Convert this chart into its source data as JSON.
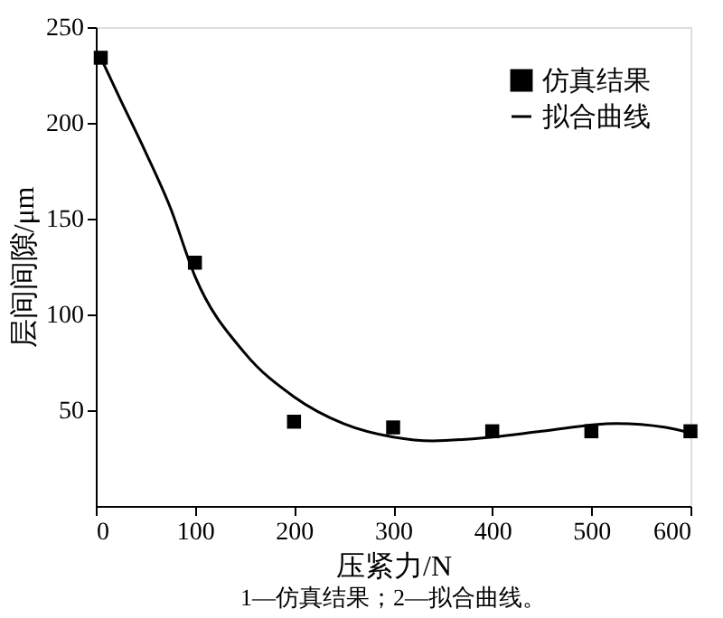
{
  "chart_data": {
    "type": "scatter",
    "xlabel": "压紧力/N",
    "ylabel": "层间间隙/μm",
    "xlim": [
      0,
      600
    ],
    "xticks": [
      0,
      100,
      200,
      300,
      400,
      500,
      600
    ],
    "ylim": [
      0,
      250
    ],
    "yticks": [
      50,
      100,
      150,
      200,
      250
    ],
    "series": [
      {
        "name": "仿真结果",
        "color": "#000000",
        "marker": "square",
        "x": [
          5,
          100,
          200,
          300,
          400,
          500,
          600
        ],
        "values": [
          234,
          127,
          44,
          41,
          39,
          39,
          39
        ]
      },
      {
        "name": "拟合曲线",
        "type": "line",
        "color": "#000000",
        "line_style": "solid",
        "x": [
          5,
          25,
          50,
          75,
          100,
          150,
          200,
          250,
          300,
          340,
          400,
          450,
          525,
          575,
          600
        ],
        "values": [
          234,
          212,
          185,
          156,
          120,
          80,
          57,
          43,
          36,
          34,
          36,
          39,
          43,
          41,
          38
        ]
      }
    ],
    "legend": "top right",
    "grid": false,
    "annotations": [
      "1—仿真结果；2—拟合曲线。"
    ]
  }
}
